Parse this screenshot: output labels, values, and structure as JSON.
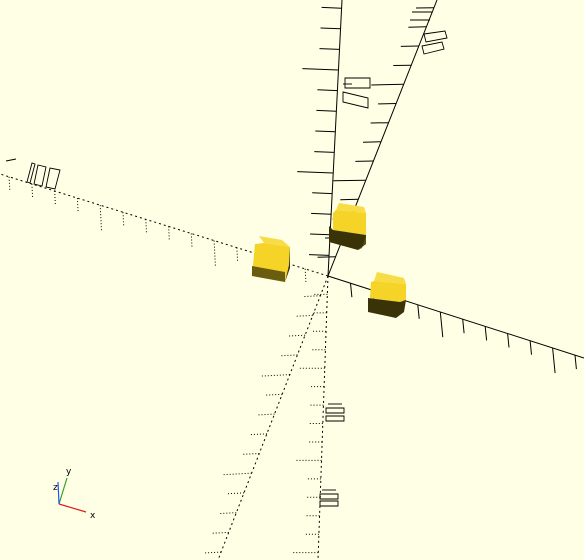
{
  "viewport": {
    "background_color": "#ffffe5",
    "object_color": "#f5d327",
    "object_shadow_color": "#3a3308",
    "axis_color": "#000000"
  },
  "axis_labels": [
    {
      "name": "neg-x-100",
      "text": "100"
    },
    {
      "name": "pos-z-100",
      "text": "100"
    },
    {
      "name": "pos-y-100",
      "text": "100"
    },
    {
      "name": "neg-z-100",
      "text": "100"
    },
    {
      "name": "neg-y-100",
      "text": "100"
    }
  ],
  "orientation_gizmo": {
    "x_label": "x",
    "y_label": "y",
    "z_label": "z",
    "x_color": "#e31a1c",
    "y_color": "#33a02c",
    "z_color": "#1f4fff"
  },
  "objects": [
    {
      "name": "cube-left"
    },
    {
      "name": "cube-top"
    },
    {
      "name": "cube-right"
    }
  ]
}
